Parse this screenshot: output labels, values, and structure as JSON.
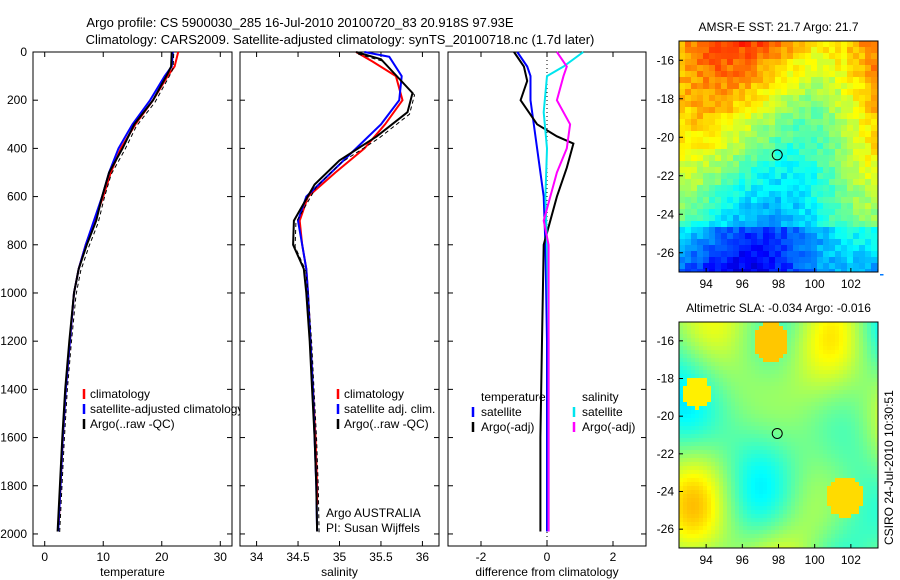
{
  "title": {
    "line1": "Argo profile: CS 5900030_285 16-Jul-2010 20100720_83 20.918S 97.93E",
    "line2": "Climatology: CARS2009. Satellite-adjusted climatology: synTS_20100718.nc (1.7d later)"
  },
  "colors": {
    "red": "#ff0000",
    "blue": "#0000ff",
    "black": "#000000",
    "cyan": "#00e5ee",
    "magenta": "#ff00ff"
  },
  "chart_data": [
    {
      "type": "line",
      "id": "temperature",
      "xlabel": "temperature",
      "ylabel": "",
      "xlim": [
        -2,
        32
      ],
      "ylim": [
        2050,
        0
      ],
      "xticks": [
        0,
        10,
        20,
        30
      ],
      "yticks": [
        0,
        200,
        400,
        600,
        800,
        1000,
        1200,
        1400,
        1600,
        1800,
        2000
      ],
      "legend": [
        "climatology",
        "satellite-adjusted climatology",
        "Argo(..raw -QC)"
      ],
      "series": [
        {
          "name": "climatology",
          "color": "red",
          "points": [
            [
              22.8,
              0
            ],
            [
              22.2,
              60
            ],
            [
              21,
              100
            ],
            [
              18.5,
              200
            ],
            [
              15.5,
              300
            ],
            [
              13,
              400
            ],
            [
              11.3,
              500
            ],
            [
              10,
              600
            ],
            [
              8.5,
              700
            ],
            [
              7,
              800
            ],
            [
              5.8,
              900
            ],
            [
              5,
              1000
            ],
            [
              4.3,
              1200
            ],
            [
              3.6,
              1400
            ],
            [
              3.1,
              1600
            ],
            [
              2.7,
              1800
            ],
            [
              2.4,
              1950
            ]
          ]
        },
        {
          "name": "satellite-adjusted climatology",
          "color": "blue",
          "points": [
            [
              21.9,
              0
            ],
            [
              21.7,
              60
            ],
            [
              20.5,
              100
            ],
            [
              18,
              200
            ],
            [
              15,
              300
            ],
            [
              12.6,
              400
            ],
            [
              11,
              500
            ],
            [
              9.8,
              600
            ],
            [
              8.4,
              700
            ],
            [
              7,
              800
            ],
            [
              5.8,
              900
            ],
            [
              5,
              1000
            ],
            [
              4.3,
              1200
            ],
            [
              3.6,
              1400
            ],
            [
              3.1,
              1600
            ],
            [
              2.7,
              1800
            ],
            [
              2.3,
              1990
            ]
          ]
        },
        {
          "name": "Argo",
          "color": "black",
          "points": [
            [
              21.7,
              0
            ],
            [
              21.6,
              60
            ],
            [
              21,
              90
            ],
            [
              18.5,
              200
            ],
            [
              15.3,
              300
            ],
            [
              13.3,
              400
            ],
            [
              11,
              500
            ],
            [
              9.8,
              600
            ],
            [
              8.8,
              700
            ],
            [
              7.2,
              800
            ],
            [
              5.8,
              900
            ],
            [
              5,
              1000
            ],
            [
              4.2,
              1200
            ],
            [
              3.5,
              1400
            ],
            [
              3,
              1600
            ],
            [
              2.6,
              1800
            ],
            [
              2.2,
              1990
            ]
          ]
        }
      ]
    },
    {
      "type": "line",
      "id": "salinity",
      "xlabel": "salinity",
      "ylabel": "",
      "xlim": [
        33.8,
        36.2
      ],
      "ylim": [
        2050,
        0
      ],
      "xticks": [
        34,
        34.5,
        35,
        35.5,
        36
      ],
      "legend": [
        "climatology",
        "satellite adj. clim.",
        "Argo(..raw -QC)"
      ],
      "annotation": [
        "Argo AUSTRALIA",
        "PI: Susan Wijffels"
      ],
      "series": [
        {
          "name": "climatology",
          "color": "red",
          "points": [
            [
              35.2,
              0
            ],
            [
              35.4,
              40
            ],
            [
              35.68,
              100
            ],
            [
              35.76,
              200
            ],
            [
              35.55,
              300
            ],
            [
              35.3,
              400
            ],
            [
              34.95,
              500
            ],
            [
              34.62,
              600
            ],
            [
              34.52,
              700
            ],
            [
              34.55,
              800
            ],
            [
              34.6,
              900
            ],
            [
              34.62,
              1000
            ],
            [
              34.65,
              1200
            ],
            [
              34.68,
              1400
            ],
            [
              34.71,
              1600
            ],
            [
              34.73,
              1800
            ],
            [
              34.73,
              1880
            ]
          ]
        },
        {
          "name": "satellite adj. clim.",
          "color": "blue",
          "points": [
            [
              35.3,
              0
            ],
            [
              35.6,
              20
            ],
            [
              35.75,
              100
            ],
            [
              35.72,
              200
            ],
            [
              35.5,
              300
            ],
            [
              35.2,
              400
            ],
            [
              34.9,
              500
            ],
            [
              34.6,
              600
            ],
            [
              34.5,
              700
            ],
            [
              34.55,
              800
            ],
            [
              34.6,
              900
            ],
            [
              34.62,
              1000
            ],
            [
              34.65,
              1200
            ],
            [
              34.68,
              1400
            ],
            [
              34.7,
              1600
            ],
            [
              34.72,
              1800
            ],
            [
              34.73,
              1990
            ]
          ]
        },
        {
          "name": "Argo",
          "color": "black",
          "points": [
            [
              35.2,
              0
            ],
            [
              35.5,
              30
            ],
            [
              35.88,
              170
            ],
            [
              35.82,
              250
            ],
            [
              35.45,
              350
            ],
            [
              35,
              450
            ],
            [
              34.7,
              550
            ],
            [
              34.45,
              700
            ],
            [
              34.44,
              800
            ],
            [
              34.57,
              900
            ],
            [
              34.6,
              1000
            ],
            [
              34.64,
              1200
            ],
            [
              34.67,
              1400
            ],
            [
              34.7,
              1600
            ],
            [
              34.72,
              1800
            ],
            [
              34.73,
              1990
            ]
          ]
        }
      ]
    },
    {
      "type": "line",
      "id": "difference",
      "xlabel": "difference from climatology",
      "ylabel": "",
      "xlim": [
        -3,
        3
      ],
      "ylim": [
        2050,
        0
      ],
      "xticks": [
        -2,
        0,
        2
      ],
      "legend_left_title": "temperature",
      "legend_left": [
        "satellite",
        "Argo(-adj)"
      ],
      "legend_right_title": "salinity",
      "legend_right": [
        "satellite",
        "Argo(-adj)"
      ],
      "series": [
        {
          "name": "temperature satellite",
          "color": "blue",
          "points": [
            [
              -0.9,
              0
            ],
            [
              -0.6,
              60
            ],
            [
              -0.5,
              100
            ],
            [
              -0.5,
              200
            ],
            [
              -0.3,
              400
            ],
            [
              -0.1,
              600
            ],
            [
              -0.05,
              800
            ],
            [
              0,
              1200
            ],
            [
              0,
              1990
            ]
          ]
        },
        {
          "name": "temperature Argo(-adj)",
          "color": "black",
          "points": [
            [
              -1,
              0
            ],
            [
              -0.7,
              60
            ],
            [
              -0.6,
              120
            ],
            [
              -0.8,
              200
            ],
            [
              -0.3,
              300
            ],
            [
              0.3,
              350
            ],
            [
              0.8,
              380
            ],
            [
              0.6,
              480
            ],
            [
              0.3,
              600
            ],
            [
              -0.1,
              800
            ],
            [
              -0.15,
              1200
            ],
            [
              -0.2,
              1600
            ],
            [
              -0.2,
              1990
            ]
          ]
        },
        {
          "name": "salinity satellite",
          "color": "cyan",
          "points": [
            [
              1.1,
              0
            ],
            [
              0.5,
              60
            ],
            [
              0,
              100
            ],
            [
              -0.1,
              250
            ],
            [
              0,
              400
            ],
            [
              -0.05,
              600
            ],
            [
              0,
              800
            ],
            [
              0.05,
              1200
            ],
            [
              0.05,
              1990
            ]
          ]
        },
        {
          "name": "salinity Argo(-adj)",
          "color": "magenta",
          "points": [
            [
              0.3,
              0
            ],
            [
              0.6,
              60
            ],
            [
              0.5,
              100
            ],
            [
              0.3,
              200
            ],
            [
              0.7,
              300
            ],
            [
              0.6,
              400
            ],
            [
              0.3,
              500
            ],
            [
              0.1,
              600
            ],
            [
              -0.1,
              700
            ],
            [
              0.05,
              800
            ],
            [
              0.05,
              1200
            ],
            [
              0.05,
              1990
            ]
          ]
        }
      ]
    },
    {
      "type": "heatmap",
      "id": "sst",
      "title": "AMSR-E SST: 21.7 Argo: 21.7",
      "xlim": [
        92.5,
        103.5
      ],
      "ylim": [
        -27,
        -15
      ],
      "xticks": [
        94,
        96,
        98,
        100,
        102
      ],
      "yticks": [
        -16,
        -18,
        -20,
        -22,
        -24,
        -26
      ],
      "marker": [
        97.93,
        -20.918
      ]
    },
    {
      "type": "heatmap",
      "id": "sla",
      "title": "Altimetric SLA: -0.034 Argo: -0.016",
      "xlim": [
        92.5,
        103.5
      ],
      "ylim": [
        -27,
        -15
      ],
      "xticks": [
        94,
        96,
        98,
        100,
        102
      ],
      "yticks": [
        -16,
        -18,
        -20,
        -22,
        -24,
        -26
      ],
      "marker": [
        97.93,
        -20.918
      ]
    }
  ],
  "footer": {
    "credit": "CSIRO 24-Jul-2010 10:30:51"
  }
}
